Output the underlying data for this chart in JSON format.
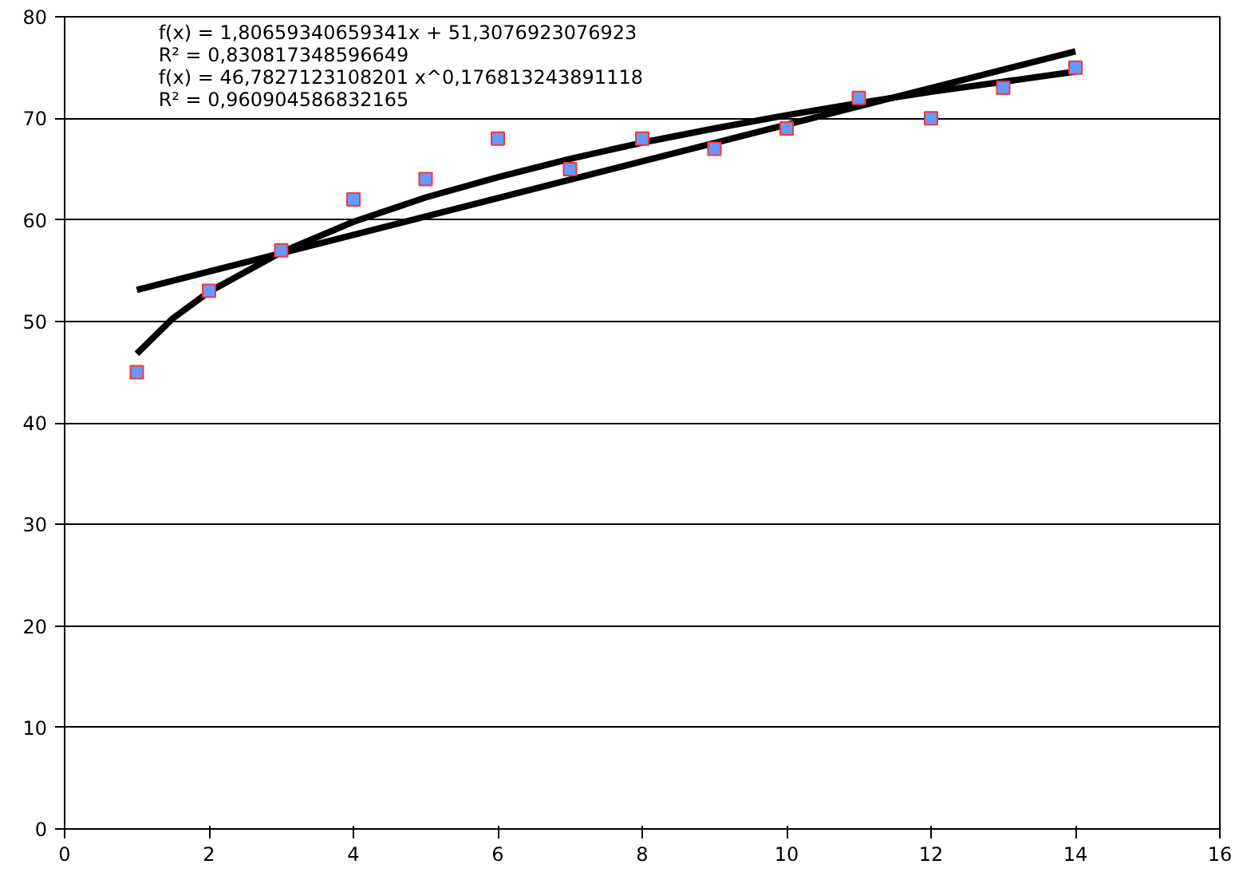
{
  "chart_data": {
    "type": "scatter",
    "series": [
      {
        "color": "#6699ff",
        "marker": "square",
        "x": [
          1,
          2,
          3,
          4,
          5,
          6,
          7,
          8,
          9,
          10,
          11,
          12,
          13,
          14
        ],
        "values": [
          45,
          53,
          57,
          62,
          64,
          68,
          65,
          68,
          67,
          69,
          72,
          70,
          73,
          75
        ]
      },
      {
        "type": "line",
        "color": "#000000",
        "x": [
          1,
          14
        ],
        "values": [
          53.1,
          76.6
        ]
      },
      {
        "type": "line",
        "color": "#000000",
        "x": [
          1,
          1.5,
          2,
          3,
          4,
          5,
          6,
          7,
          8,
          9,
          10,
          11,
          12,
          13,
          14
        ],
        "values": [
          46.8,
          50.3,
          52.9,
          56.8,
          59.8,
          62.2,
          64.2,
          66.0,
          67.6,
          69.0,
          70.3,
          71.5,
          72.6,
          73.6,
          74.6
        ]
      }
    ],
    "xlim": [
      0,
      16
    ],
    "xticks": [
      0,
      2,
      4,
      6,
      8,
      10,
      12,
      14,
      16
    ],
    "ylim": [
      0,
      80
    ],
    "yticks": [
      0,
      10,
      20,
      30,
      40,
      50,
      60,
      70,
      80
    ],
    "grid": "y",
    "annotations": [
      "f(x) = 1,80659340659341x + 51,3076923076923",
      "R² = 0,830817348596649",
      "f(x) = 46,7827123108201 x^0,176813243891118",
      "R² = 0,960904586832165"
    ]
  }
}
